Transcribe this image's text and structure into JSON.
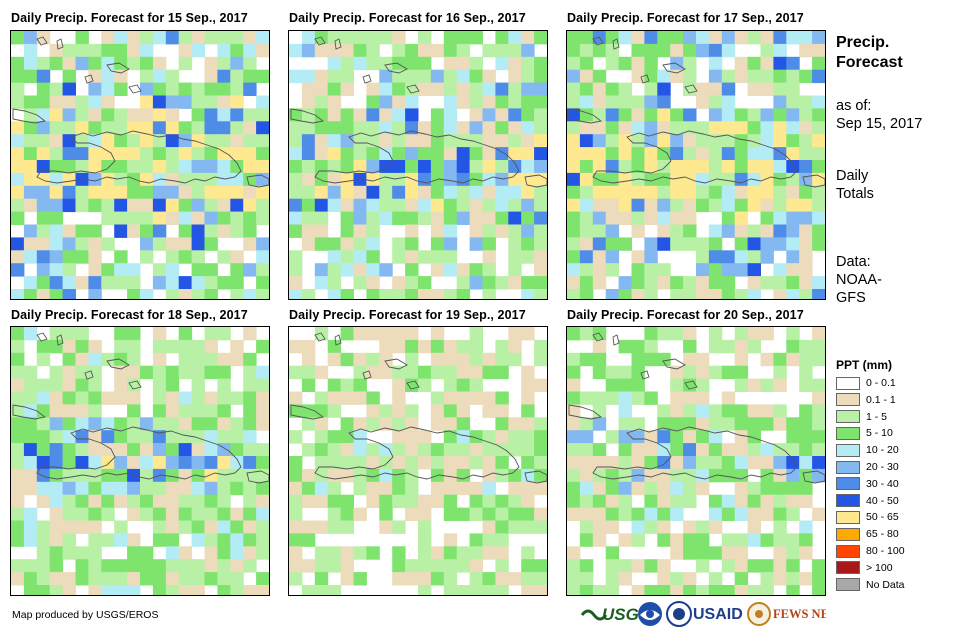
{
  "panels": [
    {
      "title": "Daily Precip. Forecast for 15 Sep., 2017",
      "seed": 11,
      "bias": 0.55
    },
    {
      "title": "Daily Precip. Forecast for 16 Sep., 2017",
      "seed": 23,
      "bias": 0.45
    },
    {
      "title": "Daily Precip. Forecast for 17 Sep., 2017",
      "seed": 37,
      "bias": 0.55
    },
    {
      "title": "Daily Precip. Forecast for 18 Sep., 2017",
      "seed": 41,
      "bias": 0.35
    },
    {
      "title": "Daily Precip. Forecast for 19 Sep., 2017",
      "seed": 53,
      "bias": 0.2
    },
    {
      "title": "Daily Precip. Forecast for 20 Sep., 2017",
      "seed": 67,
      "bias": 0.3
    }
  ],
  "side": {
    "title_line1": "Precip.",
    "title_line2": "Forecast",
    "asof_line1": "as of:",
    "asof_line2": "Sep 15, 2017",
    "totals_line1": "Daily",
    "totals_line2": "Totals",
    "data_line1": "Data:",
    "data_line2": "NOAA-",
    "data_line3": "GFS"
  },
  "legend": {
    "title": "PPT (mm)",
    "items": [
      {
        "label": "0 - 0.1",
        "color": "#ffffff"
      },
      {
        "label": "0.1 - 1",
        "color": "#ecdcbc"
      },
      {
        "label": "1 - 5",
        "color": "#b8f0a6"
      },
      {
        "label": "5 - 10",
        "color": "#7ee46e"
      },
      {
        "label": "10 - 20",
        "color": "#b4ecf6"
      },
      {
        "label": "20 - 30",
        "color": "#84b8f0"
      },
      {
        "label": "30 - 40",
        "color": "#4e8ce8"
      },
      {
        "label": "40 - 50",
        "color": "#2456e6"
      },
      {
        "label": "50 - 65",
        "color": "#fee890"
      },
      {
        "label": "65 - 80",
        "color": "#ffa800"
      },
      {
        "label": "80 - 100",
        "color": "#ff4400"
      },
      {
        "label": "> 100",
        "color": "#a81818"
      },
      {
        "label": "No Data",
        "color": "#a8a8a8"
      }
    ]
  },
  "footer": {
    "credit": "Map produced by USGS/EROS"
  },
  "logos": {
    "usgs": "USGS",
    "usaid": "USAID",
    "fewsnet": "FEWS NET"
  }
}
